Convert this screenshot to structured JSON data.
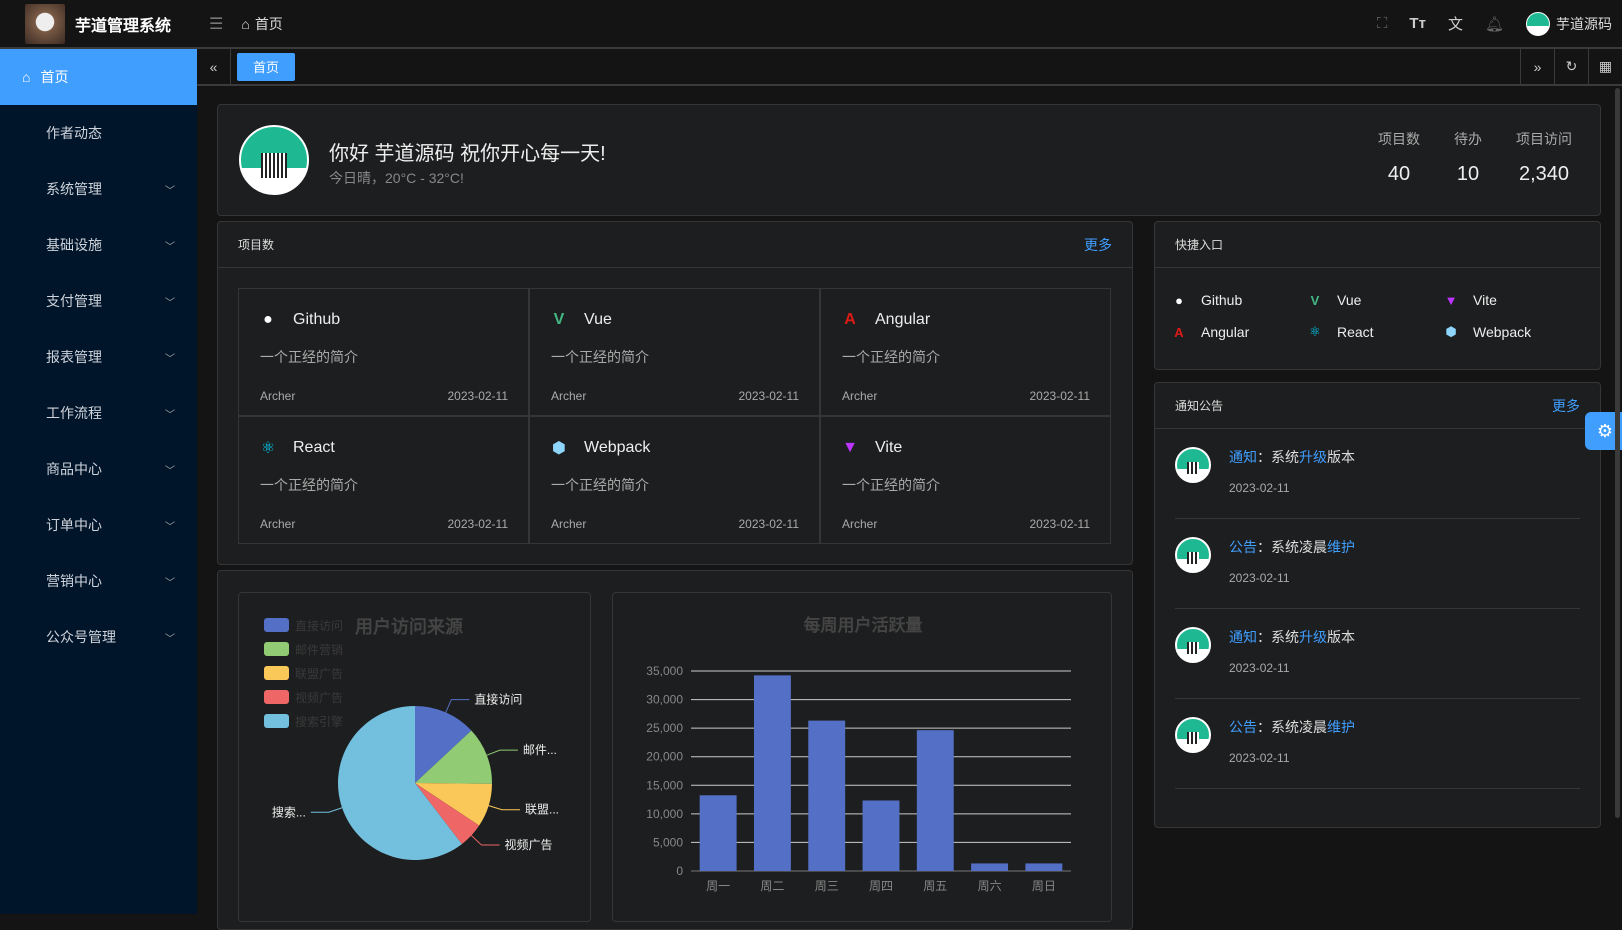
{
  "header": {
    "app_title": "芋道管理系统",
    "breadcrumb": "首页",
    "username": "芋道源码",
    "icons": [
      "fullscreen-icon",
      "font-size-icon",
      "translate-icon",
      "bell-icon"
    ]
  },
  "sidebar": {
    "items": [
      {
        "label": "首页",
        "active": true
      },
      {
        "label": "作者动态"
      },
      {
        "label": "系统管理",
        "expandable": true
      },
      {
        "label": "基础设施",
        "expandable": true
      },
      {
        "label": "支付管理",
        "expandable": true
      },
      {
        "label": "报表管理",
        "expandable": true
      },
      {
        "label": "工作流程",
        "expandable": true
      },
      {
        "label": "商品中心",
        "expandable": true
      },
      {
        "label": "订单中心",
        "expandable": true
      },
      {
        "label": "营销中心",
        "expandable": true
      },
      {
        "label": "公众号管理",
        "expandable": true
      }
    ]
  },
  "tabs": [
    {
      "label": "首页"
    }
  ],
  "welcome": {
    "greeting": "你好 芋道源码 祝你开心每一天!",
    "weather": "今日晴，20°C - 32°C!",
    "stats": [
      {
        "label": "项目数",
        "value": "40"
      },
      {
        "label": "待办",
        "value": "10"
      },
      {
        "label": "项目访问",
        "value": "2,340"
      }
    ]
  },
  "projects": {
    "title": "项目数",
    "more": "更多",
    "items": [
      {
        "name": "Github",
        "desc": "一个正经的简介",
        "author": "Archer",
        "date": "2023-02-11",
        "icon": "github-icon",
        "color": "#ffffff"
      },
      {
        "name": "Vue",
        "desc": "一个正经的简介",
        "author": "Archer",
        "date": "2023-02-11",
        "icon": "vue-icon",
        "color": "#42b883"
      },
      {
        "name": "Angular",
        "desc": "一个正经的简介",
        "author": "Archer",
        "date": "2023-02-11",
        "icon": "angular-icon",
        "color": "#dd1b16"
      },
      {
        "name": "React",
        "desc": "一个正经的简介",
        "author": "Archer",
        "date": "2023-02-11",
        "icon": "react-icon",
        "color": "#00d8ff"
      },
      {
        "name": "Webpack",
        "desc": "一个正经的简介",
        "author": "Archer",
        "date": "2023-02-11",
        "icon": "webpack-icon",
        "color": "#8ed6fb"
      },
      {
        "name": "Vite",
        "desc": "一个正经的简介",
        "author": "Archer",
        "date": "2023-02-11",
        "icon": "vite-icon",
        "color": "#bd34fe"
      }
    ]
  },
  "shortcuts": {
    "title": "快捷入口",
    "items": [
      {
        "name": "Github",
        "icon": "github-icon"
      },
      {
        "name": "Vue",
        "icon": "vue-icon"
      },
      {
        "name": "Vite",
        "icon": "vite-icon"
      },
      {
        "name": "Angular",
        "icon": "angular-icon"
      },
      {
        "name": "React",
        "icon": "react-icon"
      },
      {
        "name": "Webpack",
        "icon": "webpack-icon"
      }
    ]
  },
  "notices": {
    "title": "通知公告",
    "more": "更多",
    "items": [
      {
        "type": "通知",
        "sep": "：",
        "pre": "系统",
        "hl": "升级",
        "post": "版本",
        "date": "2023-02-11"
      },
      {
        "type": "公告",
        "sep": "：",
        "pre": "系统凌晨",
        "hl": "维护",
        "post": "",
        "date": "2023-02-11"
      },
      {
        "type": "通知",
        "sep": "：",
        "pre": "系统",
        "hl": "升级",
        "post": "版本",
        "date": "2023-02-11"
      },
      {
        "type": "公告",
        "sep": "：",
        "pre": "系统凌晨",
        "hl": "维护",
        "post": "",
        "date": "2023-02-11"
      }
    ]
  },
  "chart_data": [
    {
      "type": "pie",
      "title": "用户访问来源",
      "legend_position": "top-left",
      "categories": [
        "直接访问",
        "邮件营销",
        "联盟广告",
        "视频广告",
        "搜索引擎"
      ],
      "labels": [
        "直接访问",
        "邮件...",
        "联盟...",
        "视频广告",
        "搜索..."
      ],
      "values": [
        335,
        310,
        234,
        135,
        1548
      ],
      "colors": [
        "#5470c6",
        "#91cc75",
        "#fac858",
        "#ee6666",
        "#73c0de"
      ]
    },
    {
      "type": "bar",
      "title": "每周用户活跃量",
      "categories": [
        "周一",
        "周二",
        "周三",
        "周四",
        "周五",
        "周六",
        "周日"
      ],
      "values": [
        13253,
        34235,
        26321,
        12340,
        24643,
        1322,
        1324
      ],
      "ylim": [
        0,
        35000
      ],
      "yticks": [
        "0",
        "5,000",
        "10,000",
        "15,000",
        "20,000",
        "25,000",
        "30,000",
        "35,000"
      ],
      "color": "#5470c6",
      "grid": true
    }
  ]
}
